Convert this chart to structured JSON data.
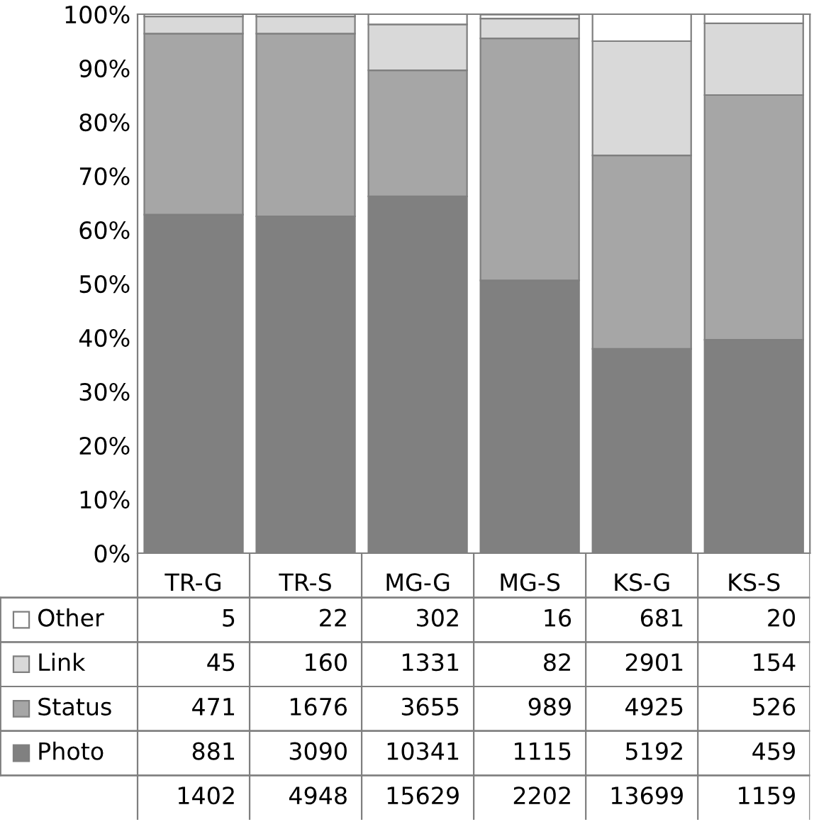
{
  "chart_data": {
    "type": "bar",
    "stacked": true,
    "categories": [
      "TR-G",
      "TR-S",
      "MG-G",
      "MG-S",
      "KS-G",
      "KS-S"
    ],
    "series": [
      {
        "name": "Photo",
        "color": "#808080",
        "values": [
          62.8,
          62.5,
          66.2,
          50.6,
          37.9,
          39.6
        ]
      },
      {
        "name": "Status",
        "color": "#a6a6a6",
        "values": [
          33.6,
          33.9,
          23.4,
          44.9,
          35.9,
          45.4
        ]
      },
      {
        "name": "Link",
        "color": "#d9d9d9",
        "values": [
          3.2,
          3.2,
          8.5,
          3.7,
          21.2,
          13.3
        ]
      },
      {
        "name": "Other",
        "color": "#ffffff",
        "values": [
          0.4,
          0.4,
          1.9,
          0.7,
          5.0,
          1.7
        ]
      }
    ],
    "annotations": [
      "5",
      "22",
      "302",
      "16",
      "681",
      "20",
      "45",
      "160",
      "1331",
      "82",
      "2901",
      "154",
      "471",
      "1676",
      "3655",
      "989",
      "4925",
      "526",
      "881",
      "3090",
      "10341",
      "1115",
      "5192",
      "459",
      "1402",
      "4948",
      "15629",
      "2202",
      "13699",
      "1159"
    ],
    "ylim": [
      0,
      100
    ],
    "yticks": [
      {
        "value": 0,
        "label": "0%"
      },
      {
        "value": 10,
        "label": "10%"
      },
      {
        "value": 20,
        "label": "20%"
      },
      {
        "value": 30,
        "label": "30%"
      },
      {
        "value": 40,
        "label": "40%"
      },
      {
        "value": 50,
        "label": "50%"
      },
      {
        "value": 60,
        "label": "60%"
      },
      {
        "value": 70,
        "label": "70%"
      },
      {
        "value": 80,
        "label": "80%"
      },
      {
        "value": 90,
        "label": "90%"
      },
      {
        "value": 100,
        "label": "100%"
      }
    ],
    "grid": false,
    "legend": "bottom"
  }
}
